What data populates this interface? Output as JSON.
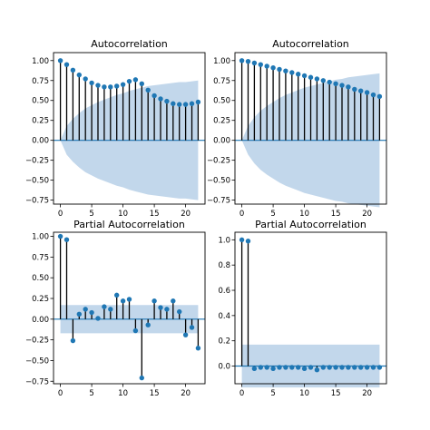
{
  "colors": {
    "marker": "#1f77b4",
    "stem": "#000000",
    "band": "#a8c6e2",
    "zero_line": "#1f77b4",
    "frame": "#000000",
    "background": "#ffffff"
  },
  "chart_data": [
    {
      "type": "stem",
      "title": "Autocorrelation",
      "xlabel": "",
      "ylabel": "",
      "xlim": [
        -1.1,
        23.1
      ],
      "ylim": [
        -0.8,
        1.1
      ],
      "xticks": [
        0,
        5,
        10,
        15,
        20
      ],
      "yticks": [
        -0.75,
        -0.5,
        -0.25,
        0.0,
        0.25,
        0.5,
        0.75,
        1.0
      ],
      "ytick_labels": [
        "−0.75",
        "−0.50",
        "−0.25",
        "0.00",
        "0.25",
        "0.50",
        "0.75",
        "1.00"
      ],
      "lags": [
        0,
        1,
        2,
        3,
        4,
        5,
        6,
        7,
        8,
        9,
        10,
        11,
        12,
        13,
        14,
        15,
        16,
        17,
        18,
        19,
        20,
        21,
        22
      ],
      "values": [
        1.0,
        0.95,
        0.88,
        0.82,
        0.77,
        0.72,
        0.69,
        0.67,
        0.67,
        0.68,
        0.7,
        0.74,
        0.76,
        0.71,
        0.63,
        0.56,
        0.52,
        0.49,
        0.46,
        0.45,
        0.45,
        0.46,
        0.48
      ],
      "confidence_band": [
        0.0,
        0.18,
        0.27,
        0.34,
        0.4,
        0.44,
        0.48,
        0.51,
        0.54,
        0.57,
        0.59,
        0.62,
        0.64,
        0.66,
        0.68,
        0.69,
        0.7,
        0.71,
        0.72,
        0.73,
        0.73,
        0.74,
        0.75
      ]
    },
    {
      "type": "stem",
      "title": "Autocorrelation",
      "xlabel": "",
      "ylabel": "",
      "xlim": [
        -1.1,
        23.1
      ],
      "ylim": [
        -0.8,
        1.1
      ],
      "xticks": [
        0,
        5,
        10,
        15,
        20
      ],
      "yticks": [
        -0.75,
        -0.5,
        -0.25,
        0.0,
        0.25,
        0.5,
        0.75,
        1.0
      ],
      "ytick_labels": [
        "−0.75",
        "−0.50",
        "−0.25",
        "0.00",
        "0.25",
        "0.50",
        "0.75",
        "1.00"
      ],
      "lags": [
        0,
        1,
        2,
        3,
        4,
        5,
        6,
        7,
        8,
        9,
        10,
        11,
        12,
        13,
        14,
        15,
        16,
        17,
        18,
        19,
        20,
        21,
        22
      ],
      "values": [
        1.0,
        0.99,
        0.97,
        0.95,
        0.93,
        0.91,
        0.89,
        0.87,
        0.85,
        0.83,
        0.81,
        0.79,
        0.77,
        0.75,
        0.73,
        0.71,
        0.69,
        0.67,
        0.64,
        0.62,
        0.6,
        0.57,
        0.55
      ],
      "confidence_band": [
        0.0,
        0.18,
        0.29,
        0.37,
        0.43,
        0.48,
        0.53,
        0.57,
        0.6,
        0.63,
        0.66,
        0.68,
        0.7,
        0.72,
        0.74,
        0.76,
        0.77,
        0.79,
        0.8,
        0.81,
        0.82,
        0.83,
        0.84
      ]
    },
    {
      "type": "stem",
      "title": "Partial Autocorrelation",
      "xlabel": "",
      "ylabel": "",
      "xlim": [
        -1.1,
        23.1
      ],
      "ylim": [
        -0.78,
        1.05
      ],
      "xticks": [
        0,
        5,
        10,
        15,
        20
      ],
      "yticks": [
        -0.75,
        -0.5,
        -0.25,
        0.0,
        0.25,
        0.5,
        0.75,
        1.0
      ],
      "ytick_labels": [
        "−0.75",
        "−0.50",
        "−0.25",
        "0.00",
        "0.25",
        "0.50",
        "0.75",
        "1.00"
      ],
      "lags": [
        0,
        1,
        2,
        3,
        4,
        5,
        6,
        7,
        8,
        9,
        10,
        11,
        12,
        13,
        14,
        15,
        16,
        17,
        18,
        19,
        20,
        21,
        22
      ],
      "values": [
        1.0,
        0.96,
        -0.26,
        0.06,
        0.12,
        0.08,
        0.01,
        0.15,
        0.12,
        0.29,
        0.22,
        0.24,
        -0.14,
        -0.71,
        -0.07,
        0.22,
        0.14,
        0.12,
        0.22,
        0.09,
        -0.19,
        -0.1,
        -0.35
      ],
      "confidence_band": [
        0.17,
        0.17,
        0.17,
        0.17,
        0.17,
        0.17,
        0.17,
        0.17,
        0.17,
        0.17,
        0.17,
        0.17,
        0.17,
        0.17,
        0.17,
        0.17,
        0.17,
        0.17,
        0.17,
        0.17,
        0.17,
        0.17,
        0.17
      ]
    },
    {
      "type": "stem",
      "title": "Partial Autocorrelation",
      "xlabel": "",
      "ylabel": "",
      "xlim": [
        -1.1,
        23.1
      ],
      "ylim": [
        -0.14,
        1.06
      ],
      "xticks": [
        0,
        5,
        10,
        15,
        20
      ],
      "yticks": [
        0.0,
        0.2,
        0.4,
        0.6,
        0.8,
        1.0
      ],
      "ytick_labels": [
        "0.0",
        "0.2",
        "0.4",
        "0.6",
        "0.8",
        "1.0"
      ],
      "lags": [
        0,
        1,
        2,
        3,
        4,
        5,
        6,
        7,
        8,
        9,
        10,
        11,
        12,
        13,
        14,
        15,
        16,
        17,
        18,
        19,
        20,
        21,
        22
      ],
      "values": [
        1.0,
        0.99,
        -0.02,
        -0.01,
        -0.01,
        -0.02,
        -0.01,
        -0.01,
        -0.01,
        -0.01,
        -0.02,
        -0.01,
        -0.03,
        -0.01,
        -0.01,
        -0.01,
        -0.01,
        -0.01,
        -0.01,
        -0.01,
        -0.01,
        -0.01,
        -0.01
      ],
      "confidence_band": [
        0.17,
        0.17,
        0.17,
        0.17,
        0.17,
        0.17,
        0.17,
        0.17,
        0.17,
        0.17,
        0.17,
        0.17,
        0.17,
        0.17,
        0.17,
        0.17,
        0.17,
        0.17,
        0.17,
        0.17,
        0.17,
        0.17,
        0.17
      ]
    }
  ]
}
